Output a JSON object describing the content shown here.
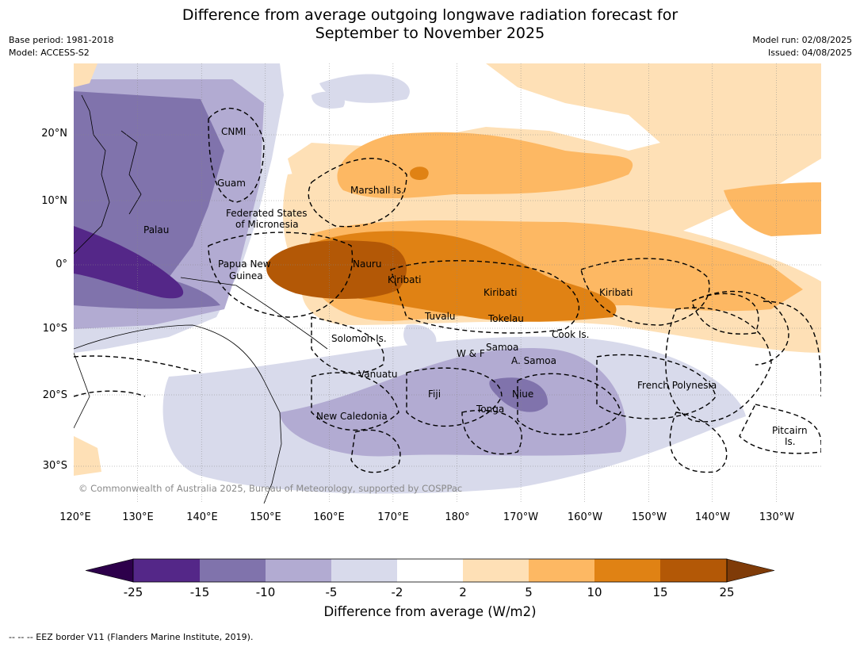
{
  "title_line1": "Difference from average outgoing longwave radiation forecast for",
  "title_line2": "September to November 2025",
  "meta_left": {
    "base_period": "Base period: 1981-2018",
    "model": "Model: ACCESS-S2"
  },
  "meta_right": {
    "model_run": "Model run: 02/08/2025",
    "issued": "Issued: 04/08/2025"
  },
  "lat_labels": [
    "20°N",
    "10°N",
    "0°",
    "10°S",
    "20°S",
    "30°S"
  ],
  "lon_labels": [
    "120°E",
    "130°E",
    "140°E",
    "150°E",
    "160°E",
    "170°E",
    "180°",
    "170°W",
    "160°W",
    "150°W",
    "140°W",
    "130°W"
  ],
  "region_labels": [
    "CNMI",
    "Guam",
    "Marshall Is.",
    "Federated States",
    "of Micronesia",
    "Palau",
    "Papua New",
    "Guinea",
    "Nauru",
    "Kiribati",
    "Kiribati",
    "Kiribati",
    "Tuvalu",
    "Tokelau",
    "Cook Is.",
    "Solomon Is.",
    "W & F",
    "Samoa",
    "A. Samoa",
    "Vanuatu",
    "Fiji",
    "Niue",
    "Tonga",
    "New Caledonia",
    "French Polynesia",
    "Pitcairn",
    "Is."
  ],
  "copyright": "© Commonwealth of Australia 2025, Bureau of Meteorology, supported by COSPPac",
  "colorbar": {
    "ticks": [
      "-25",
      "-15",
      "-10",
      "-5",
      "-2",
      "2",
      "5",
      "10",
      "15",
      "25"
    ],
    "colors": [
      "#2d004b",
      "#542788",
      "#8073ac",
      "#b2abd2",
      "#d8daeb",
      "#ffffff",
      "#fee0b6",
      "#fdb863",
      "#e08214",
      "#b35806",
      "#7f3b08"
    ],
    "label": "Difference from average (W/m2)"
  },
  "footnote": "--  --  -- EEZ border V11 (Flanders Marine Institute, 2019)."
}
